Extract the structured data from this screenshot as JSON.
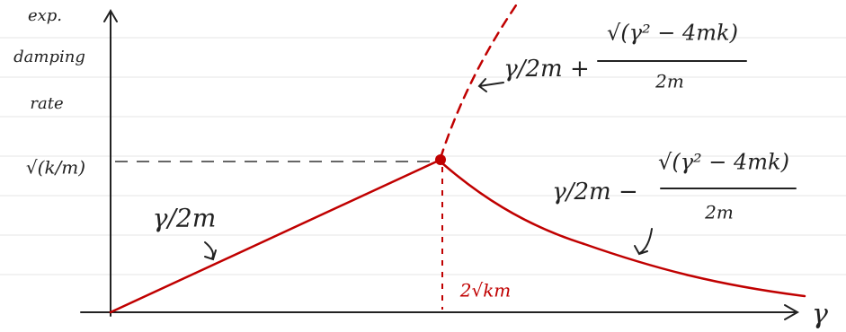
{
  "axes": {
    "y_label": [
      "exp.",
      "damping",
      "rate"
    ],
    "x_label": "γ",
    "y_marker": "√(k/m)",
    "x_marker": "2√km"
  },
  "curves": [
    {
      "label": "γ/2m"
    },
    {
      "label": "γ/2m +",
      "numerator": "√(γ² − 4mk)",
      "denominator": "2m"
    },
    {
      "label": "γ/2m −",
      "numerator": "√(γ² − 4mk)",
      "denominator": "2m"
    }
  ]
}
